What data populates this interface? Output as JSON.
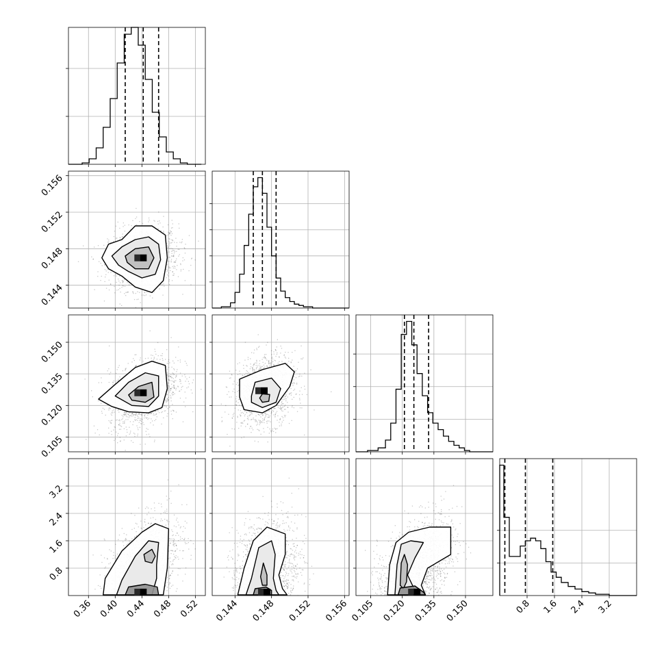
{
  "chart_data": {
    "type": "corner",
    "title": "",
    "grid": true,
    "parameters": [
      {
        "range": [
          0.33,
          0.535
        ],
        "ticks": [
          0.36,
          0.4,
          0.44,
          0.48,
          0.52
        ],
        "tick_labels": [
          "0.36",
          "0.40",
          "0.44",
          "0.48",
          "0.52"
        ],
        "quantiles": [
          0.415,
          0.442,
          0.465
        ],
        "hist_bins": [
          0.33,
          0.3505,
          0.361,
          0.3715,
          0.382,
          0.3925,
          0.403,
          0.4135,
          0.424,
          0.4345,
          0.445,
          0.4555,
          0.466,
          0.4765,
          0.487,
          0.4975,
          0.508,
          0.5185,
          0.529
        ],
        "hist": [
          0.0,
          0.01,
          0.04,
          0.12,
          0.27,
          0.48,
          0.74,
          0.95,
          1.0,
          0.87,
          0.62,
          0.38,
          0.2,
          0.09,
          0.04,
          0.01,
          0.0,
          0.0
        ],
        "hist_ymax": 1.0,
        "hist_yticks": [
          0.35,
          0.7
        ]
      },
      {
        "range": [
          0.1415,
          0.1565
        ],
        "ticks": [
          0.144,
          0.148,
          0.152,
          0.156
        ],
        "tick_labels": [
          "0.144",
          "0.148",
          "0.152",
          "0.156"
        ],
        "quantiles": [
          0.146,
          0.147,
          0.1485
        ],
        "hist_bins": [
          0.1415,
          0.1425,
          0.1435,
          0.144,
          0.1445,
          0.145,
          0.1455,
          0.146,
          0.1465,
          0.147,
          0.1475,
          0.148,
          0.1485,
          0.149,
          0.1495,
          0.15,
          0.1505,
          0.151,
          0.1515,
          0.1525,
          0.1535,
          0.1565
        ],
        "hist": [
          0.0,
          0.01,
          0.04,
          0.12,
          0.26,
          0.48,
          0.72,
          0.93,
          1.0,
          0.88,
          0.62,
          0.4,
          0.23,
          0.13,
          0.08,
          0.05,
          0.03,
          0.02,
          0.01,
          0.0,
          0.0
        ],
        "hist_ymax": 1.05,
        "hist_yticks": [
          0.2,
          0.4,
          0.6,
          0.8
        ]
      },
      {
        "range": [
          0.098,
          0.163
        ],
        "ticks": [
          0.105,
          0.12,
          0.135,
          0.15
        ],
        "tick_labels": [
          "0.105",
          "0.120",
          "0.135",
          "0.150"
        ],
        "quantiles": [
          0.121,
          0.1255,
          0.1325
        ],
        "hist_bins": [
          0.098,
          0.1035,
          0.1085,
          0.112,
          0.1145,
          0.117,
          0.1195,
          0.122,
          0.1245,
          0.127,
          0.1295,
          0.132,
          0.1345,
          0.137,
          0.1395,
          0.142,
          0.1445,
          0.147,
          0.1495,
          0.152,
          0.158,
          0.163
        ],
        "hist": [
          0.0,
          0.01,
          0.03,
          0.09,
          0.22,
          0.48,
          0.9,
          1.0,
          0.82,
          0.6,
          0.43,
          0.3,
          0.22,
          0.17,
          0.12,
          0.08,
          0.05,
          0.03,
          0.01,
          0.0,
          0.0
        ],
        "hist_ymax": 1.05,
        "hist_yticks": [
          0.25,
          0.5,
          0.75
        ]
      },
      {
        "range": [
          0.0,
          4.0
        ],
        "ticks": [
          0.8,
          1.6,
          2.4,
          3.2
        ],
        "tick_labels": [
          "0.8",
          "1.6",
          "2.4",
          "3.2"
        ],
        "quantiles": [
          0.15,
          0.75,
          1.55
        ],
        "hist_bins": [
          0.0,
          0.12,
          0.28,
          0.45,
          0.6,
          0.75,
          0.9,
          1.05,
          1.2,
          1.35,
          1.5,
          1.65,
          1.8,
          2.0,
          2.2,
          2.4,
          2.6,
          2.8,
          3.0,
          3.2,
          3.4,
          3.6,
          4.0
        ],
        "hist": [
          1.0,
          0.6,
          0.3,
          0.3,
          0.38,
          0.42,
          0.44,
          0.42,
          0.36,
          0.26,
          0.18,
          0.14,
          0.1,
          0.07,
          0.05,
          0.03,
          0.02,
          0.01,
          0.01,
          0.0,
          0.0,
          0.0
        ],
        "hist_ymax": 1.05,
        "hist_yticks": [
          0.25,
          0.5
        ]
      }
    ],
    "pairs": [
      {
        "row": 1,
        "col": 0,
        "mean": [
          0.442,
          0.147
        ],
        "sd": [
          0.026,
          0.0017
        ],
        "rho": 0.1,
        "n_points": 1400,
        "contours": [
          [
            [
              0.38,
              0.147
            ],
            [
              0.39,
              0.1485
            ],
            [
              0.41,
              0.149
            ],
            [
              0.43,
              0.1505
            ],
            [
              0.455,
              0.1505
            ],
            [
              0.475,
              0.1495
            ],
            [
              0.478,
              0.147
            ],
            [
              0.472,
              0.1445
            ],
            [
              0.455,
              0.1432
            ],
            [
              0.43,
              0.1438
            ],
            [
              0.41,
              0.145
            ],
            [
              0.39,
              0.1458
            ],
            [
              0.38,
              0.147
            ]
          ],
          [
            [
              0.395,
              0.1472
            ],
            [
              0.41,
              0.1482
            ],
            [
              0.43,
              0.149
            ],
            [
              0.45,
              0.1493
            ],
            [
              0.465,
              0.1485
            ],
            [
              0.468,
              0.1468
            ],
            [
              0.46,
              0.1452
            ],
            [
              0.44,
              0.1448
            ],
            [
              0.42,
              0.1455
            ],
            [
              0.405,
              0.1462
            ],
            [
              0.395,
              0.1472
            ]
          ],
          [
            [
              0.415,
              0.1472
            ],
            [
              0.43,
              0.148
            ],
            [
              0.45,
              0.1482
            ],
            [
              0.458,
              0.147
            ],
            [
              0.45,
              0.1458
            ],
            [
              0.43,
              0.1458
            ],
            [
              0.418,
              0.1465
            ],
            [
              0.415,
              0.1472
            ]
          ]
        ]
      },
      {
        "row": 2,
        "col": 0,
        "mean": [
          0.442,
          0.126
        ],
        "sd": [
          0.026,
          0.0085
        ],
        "rho": 0.35,
        "n_points": 1400,
        "contours": [
          [
            [
              0.375,
              0.123
            ],
            [
              0.4,
              0.13
            ],
            [
              0.43,
              0.138
            ],
            [
              0.455,
              0.141
            ],
            [
              0.475,
              0.139
            ],
            [
              0.478,
              0.128
            ],
            [
              0.47,
              0.119
            ],
            [
              0.45,
              0.1165
            ],
            [
              0.42,
              0.117
            ],
            [
              0.395,
              0.1195
            ],
            [
              0.375,
              0.123
            ]
          ],
          [
            [
              0.4,
              0.1245
            ],
            [
              0.42,
              0.131
            ],
            [
              0.445,
              0.1355
            ],
            [
              0.465,
              0.134
            ],
            [
              0.465,
              0.1245
            ],
            [
              0.45,
              0.1195
            ],
            [
              0.425,
              0.12
            ],
            [
              0.4,
              0.1245
            ]
          ],
          [
            [
              0.42,
              0.125
            ],
            [
              0.435,
              0.129
            ],
            [
              0.455,
              0.131
            ],
            [
              0.458,
              0.124
            ],
            [
              0.445,
              0.1215
            ],
            [
              0.425,
              0.1225
            ],
            [
              0.42,
              0.125
            ]
          ]
        ]
      },
      {
        "row": 2,
        "col": 1,
        "mean": [
          0.1472,
          0.127
        ],
        "sd": [
          0.0017,
          0.0085
        ],
        "rho": 0.2,
        "n_points": 1300,
        "contours": [
          [
            [
              0.1445,
              0.124
            ],
            [
              0.1445,
              0.1325
            ],
            [
              0.147,
              0.137
            ],
            [
              0.1495,
              0.14
            ],
            [
              0.1505,
              0.136
            ],
            [
              0.15,
              0.129
            ],
            [
              0.1485,
              0.12
            ],
            [
              0.147,
              0.1165
            ],
            [
              0.145,
              0.118
            ],
            [
              0.1445,
              0.124
            ]
          ],
          [
            [
              0.1458,
              0.1245
            ],
            [
              0.1462,
              0.131
            ],
            [
              0.148,
              0.133
            ],
            [
              0.149,
              0.128
            ],
            [
              0.1485,
              0.1215
            ],
            [
              0.147,
              0.119
            ],
            [
              0.1458,
              0.1215
            ],
            [
              0.1458,
              0.1245
            ]
          ],
          [
            [
              0.1467,
              0.1235
            ],
            [
              0.147,
              0.1255
            ],
            [
              0.1478,
              0.1252
            ],
            [
              0.1477,
              0.122
            ],
            [
              0.147,
              0.1215
            ],
            [
              0.1467,
              0.1235
            ]
          ]
        ]
      },
      {
        "row": 3,
        "col": 0,
        "mean": [
          0.442,
          0.8
        ],
        "sd": [
          0.026,
          0.7
        ],
        "rho": 0.45,
        "n_points": 1400,
        "contours": [
          [
            [
              0.382,
              0.02
            ],
            [
              0.385,
              0.5
            ],
            [
              0.41,
              1.3
            ],
            [
              0.44,
              1.85
            ],
            [
              0.46,
              2.1
            ],
            [
              0.48,
              1.95
            ],
            [
              0.478,
              0.8
            ],
            [
              0.472,
              0.02
            ]
          ],
          [
            [
              0.402,
              0.02
            ],
            [
              0.41,
              0.45
            ],
            [
              0.43,
              1.15
            ],
            [
              0.45,
              1.6
            ],
            [
              0.465,
              1.55
            ],
            [
              0.462,
              0.9
            ],
            [
              0.462,
              0.5
            ],
            [
              0.455,
              0.02
            ]
          ],
          [
            [
              0.455,
              1.35
            ],
            [
              0.46,
              1.15
            ],
            [
              0.455,
              0.95
            ],
            [
              0.445,
              1.0
            ],
            [
              0.443,
              1.2
            ],
            [
              0.455,
              1.35
            ]
          ],
          [
            [
              0.415,
              0.02
            ],
            [
              0.42,
              0.25
            ],
            [
              0.445,
              0.33
            ],
            [
              0.463,
              0.25
            ],
            [
              0.465,
              0.02
            ]
          ]
        ]
      },
      {
        "row": 3,
        "col": 1,
        "mean": [
          0.1475,
          0.75
        ],
        "sd": [
          0.0017,
          0.75
        ],
        "rho": 0.15,
        "n_points": 1400,
        "contours": [
          [
            [
              0.1443,
              0.02
            ],
            [
              0.145,
              0.8
            ],
            [
              0.146,
              1.6
            ],
            [
              0.1475,
              2.0
            ],
            [
              0.1495,
              1.8
            ],
            [
              0.1495,
              1.2
            ],
            [
              0.1488,
              0.6
            ],
            [
              0.1492,
              0.2
            ],
            [
              0.1497,
              0.02
            ]
          ],
          [
            [
              0.1452,
              0.02
            ],
            [
              0.1458,
              0.5
            ],
            [
              0.1466,
              1.4
            ],
            [
              0.148,
              1.6
            ],
            [
              0.1484,
              1.2
            ],
            [
              0.1482,
              0.5
            ],
            [
              0.1485,
              0.15
            ],
            [
              0.1488,
              0.02
            ]
          ],
          [
            [
              0.1468,
              0.55
            ],
            [
              0.1471,
              0.95
            ],
            [
              0.1475,
              0.6
            ],
            [
              0.1475,
              0.3
            ],
            [
              0.147,
              0.3
            ],
            [
              0.1468,
              0.55
            ]
          ],
          [
            [
              0.146,
              0.02
            ],
            [
              0.1462,
              0.2
            ],
            [
              0.1474,
              0.25
            ],
            [
              0.148,
              0.15
            ],
            [
              0.148,
              0.02
            ]
          ]
        ]
      },
      {
        "row": 3,
        "col": 2,
        "mean": [
          0.127,
          0.8
        ],
        "sd": [
          0.0085,
          0.7
        ],
        "rho": 0.4,
        "n_points": 1400,
        "contours": [
          [
            [
              0.113,
              0.02
            ],
            [
              0.114,
              0.9
            ],
            [
              0.117,
              1.55
            ],
            [
              0.123,
              1.85
            ],
            [
              0.133,
              2.0
            ],
            [
              0.143,
              2.0
            ],
            [
              0.143,
              1.2
            ],
            [
              0.132,
              0.8
            ],
            [
              0.129,
              0.3
            ],
            [
              0.131,
              0.02
            ]
          ],
          [
            [
              0.1165,
              0.02
            ],
            [
              0.1175,
              0.9
            ],
            [
              0.1195,
              1.5
            ],
            [
              0.124,
              1.6
            ],
            [
              0.13,
              1.55
            ],
            [
              0.126,
              1.1
            ],
            [
              0.1225,
              0.6
            ],
            [
              0.126,
              0.15
            ],
            [
              0.128,
              0.02
            ]
          ],
          [
            [
              0.119,
              0.3
            ],
            [
              0.1195,
              0.95
            ],
            [
              0.121,
              1.2
            ],
            [
              0.1225,
              0.9
            ],
            [
              0.122,
              0.4
            ],
            [
              0.1205,
              0.2
            ],
            [
              0.119,
              0.3
            ]
          ],
          [
            [
              0.118,
              0.02
            ],
            [
              0.119,
              0.22
            ],
            [
              0.126,
              0.28
            ],
            [
              0.13,
              0.1
            ],
            [
              0.131,
              0.02
            ]
          ]
        ]
      }
    ]
  }
}
